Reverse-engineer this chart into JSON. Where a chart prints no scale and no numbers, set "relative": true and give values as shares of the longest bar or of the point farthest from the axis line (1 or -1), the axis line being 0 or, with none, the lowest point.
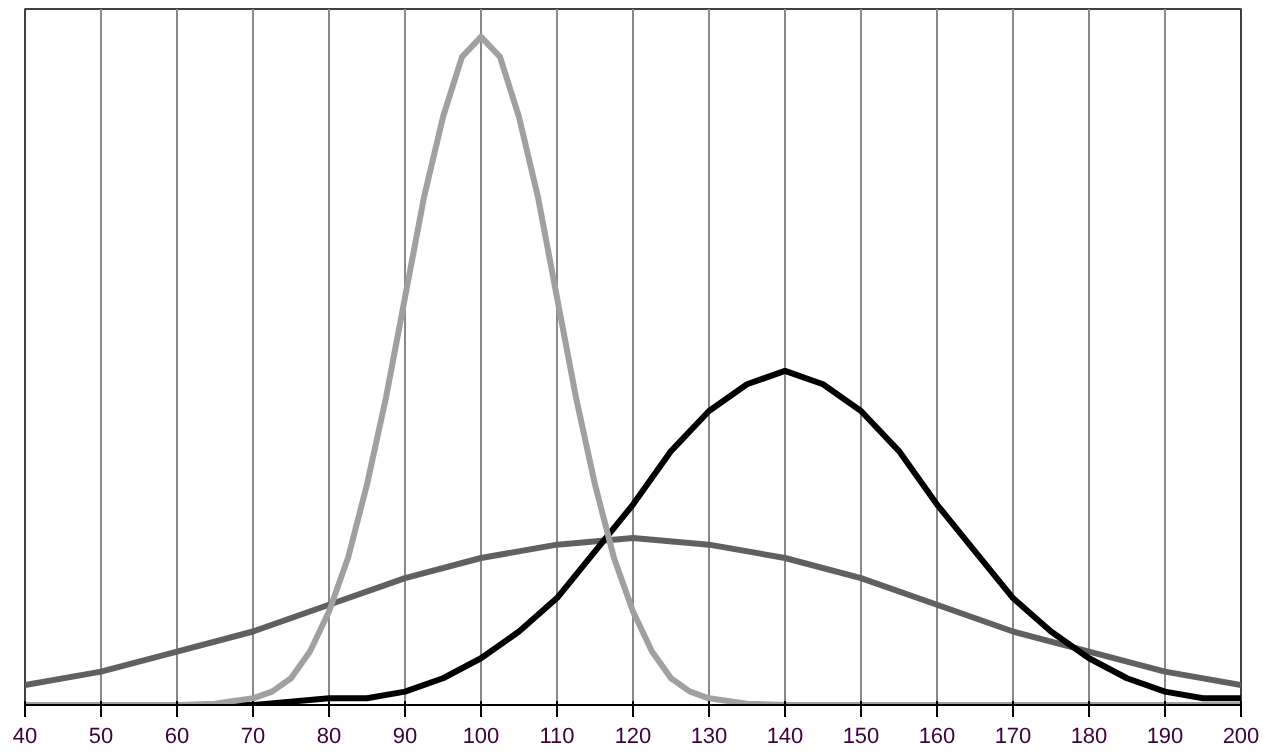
{
  "chart_data": {
    "type": "line",
    "relative": true,
    "xlim": [
      40,
      200
    ],
    "xticks": [
      40,
      50,
      60,
      70,
      80,
      90,
      100,
      110,
      120,
      130,
      140,
      150,
      160,
      170,
      180,
      190,
      200
    ],
    "grid": "x",
    "marker": "none",
    "line_style": "solid",
    "series": [
      {
        "color": "#606060",
        "x": [
          40,
          50,
          60,
          70,
          80,
          90,
          100,
          110,
          120,
          130,
          140,
          150,
          160,
          170,
          180,
          190,
          200
        ],
        "values": [
          0.03,
          0.05,
          0.08,
          0.11,
          0.15,
          0.19,
          0.22,
          0.24,
          0.25,
          0.24,
          0.22,
          0.19,
          0.15,
          0.11,
          0.08,
          0.05,
          0.03
        ]
      },
      {
        "color": "#000000",
        "x": [
          40,
          70,
          80,
          85,
          90,
          95,
          100,
          105,
          110,
          115,
          120,
          125,
          130,
          135,
          140,
          145,
          150,
          155,
          160,
          165,
          170,
          175,
          180,
          185,
          190,
          195,
          200
        ],
        "values": [
          0,
          0,
          0.01,
          0.01,
          0.02,
          0.04,
          0.07,
          0.11,
          0.16,
          0.23,
          0.3,
          0.38,
          0.44,
          0.48,
          0.5,
          0.48,
          0.44,
          0.38,
          0.3,
          0.23,
          0.16,
          0.11,
          0.07,
          0.04,
          0.02,
          0.01,
          0.01
        ]
      },
      {
        "color": "#a0a0a0",
        "x": [
          40,
          60,
          65,
          70,
          72.5,
          75,
          77.5,
          80,
          82.5,
          85,
          87.5,
          90,
          92.5,
          95,
          97.5,
          100,
          102.5,
          105,
          107.5,
          110,
          112.5,
          115,
          117.5,
          120,
          122.5,
          125,
          127.5,
          130,
          135,
          140,
          200
        ],
        "values": [
          0,
          0,
          0.002,
          0.01,
          0.02,
          0.04,
          0.08,
          0.14,
          0.22,
          0.33,
          0.46,
          0.61,
          0.76,
          0.88,
          0.97,
          1,
          0.97,
          0.88,
          0.76,
          0.61,
          0.46,
          0.33,
          0.22,
          0.14,
          0.08,
          0.04,
          0.02,
          0.01,
          0.002,
          0,
          0
        ]
      }
    ]
  }
}
